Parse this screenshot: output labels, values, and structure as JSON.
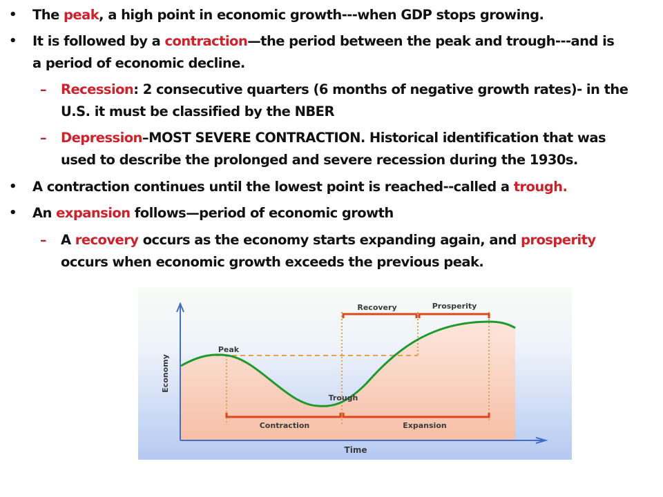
{
  "slide": {
    "bullets": [
      {
        "id": "peak",
        "level": 1,
        "lines": [
          [
            {
              "t": "The "
            },
            {
              "t": "peak",
              "hl": true
            },
            {
              "t": ", a high point in economic growth---when GDP stops growing."
            }
          ]
        ]
      },
      {
        "id": "contraction",
        "level": 1,
        "lines": [
          [
            {
              "t": "It is followed by a "
            },
            {
              "t": "contraction",
              "hl": true
            },
            {
              "t": "—the period between the peak and trough---and is"
            }
          ],
          [
            {
              "t": "a period of economic decline."
            }
          ]
        ]
      },
      {
        "id": "recession",
        "level": 2,
        "lines": [
          [
            {
              "t": "Recession",
              "hl": true
            },
            {
              "t": ": 2 consecutive quarters (6 months of negative growth rates)- in the"
            }
          ],
          [
            {
              "t": "U.S. it must be classified by the NBER"
            }
          ]
        ]
      },
      {
        "id": "depression",
        "level": 2,
        "lines": [
          [
            {
              "t": "Depression",
              "hl": true
            },
            {
              "t": "–MOST SEVERE CONTRACTION.  Historical identification that was"
            }
          ],
          [
            {
              "t": "used to describe the prolonged and severe recession during the 1930s."
            }
          ]
        ]
      },
      {
        "id": "trough",
        "level": 1,
        "lines": [
          [
            {
              "t": "A contraction continues until the lowest point is reached--called a "
            },
            {
              "t": "trough.",
              "hl": true
            }
          ]
        ]
      },
      {
        "id": "expansion",
        "level": 1,
        "lines": [
          [
            {
              "t": "An "
            },
            {
              "t": "expansion",
              "hl": true
            },
            {
              "t": " follows—period of economic growth"
            }
          ]
        ]
      },
      {
        "id": "recovery",
        "level": 2,
        "lines": [
          [
            {
              "t": "A "
            },
            {
              "t": "recovery",
              "hl": true
            },
            {
              "t": " occurs as the economy starts expanding again, and "
            },
            {
              "t": "prosperity",
              "hl": true
            }
          ],
          [
            {
              "t": "occurs when economic growth exceeds the previous peak."
            }
          ]
        ]
      }
    ],
    "bullet_glyph": "•",
    "dash_glyph": "–"
  },
  "diagram": {
    "y_axis_label": "Economy",
    "x_axis_label": "Time",
    "point_labels": {
      "peak": "Peak",
      "trough": "Trough"
    },
    "phase_labels": {
      "contraction": "Contraction",
      "expansion": "Expansion",
      "recovery": "Recovery",
      "prosperity": "Prosperity"
    }
  },
  "colors": {
    "text": "#111111",
    "highlight": "#d0202a",
    "curve": "#1f9a2a",
    "bracket": "#d9481c",
    "guide": "#e2a050",
    "axis": "#3f6fc8",
    "fill_under_curve": "#f8c8b4",
    "panel_top": "#f7fbf6",
    "panel_bottom": "#b7ccf2"
  }
}
